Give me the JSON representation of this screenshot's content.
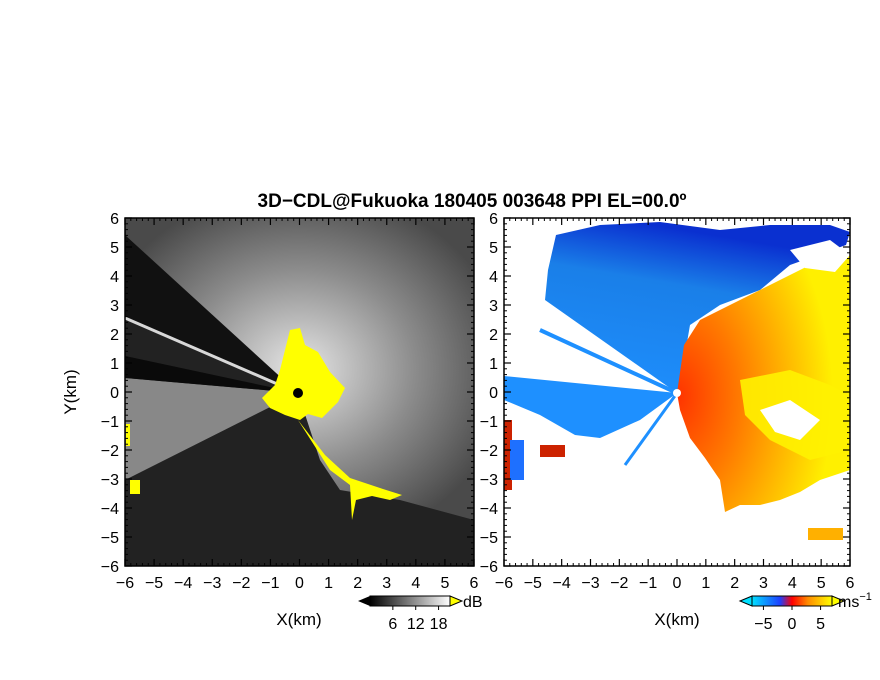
{
  "title": "3D−CDL@Fukuoka 180405 003648 PPI EL=00.0º",
  "chart_data": [
    {
      "type": "heatmap",
      "panel": "left",
      "quantity": "backscatter intensity",
      "xlabel": "X(km)",
      "ylabel": "Y(km)",
      "xlim": [
        -6,
        6
      ],
      "ylim": [
        -6,
        6
      ],
      "xticks": [
        "−6",
        "−5",
        "−4",
        "−3",
        "−2",
        "−1",
        "0",
        "1",
        "2",
        "3",
        "4",
        "5",
        "6"
      ],
      "yticks": [
        "6",
        "5",
        "4",
        "3",
        "2",
        "1",
        "0",
        "−1",
        "−2",
        "−3",
        "−4",
        "−5",
        "−6"
      ],
      "colorbar": {
        "unit": "dB",
        "ticks": [
          "6",
          "12",
          "18"
        ],
        "values": [
          6,
          12,
          18
        ],
        "range": [
          0,
          21
        ]
      },
      "colors": {
        "low": "#000000",
        "high": "#ffffff",
        "saturated": "#ffff00"
      }
    },
    {
      "type": "heatmap",
      "panel": "right",
      "quantity": "radial velocity",
      "xlabel": "X(km)",
      "xlim": [
        -6,
        6
      ],
      "ylim": [
        -6,
        6
      ],
      "xticks": [
        "−6",
        "−5",
        "−4",
        "−3",
        "−2",
        "−1",
        "0",
        "1",
        "2",
        "3",
        "4",
        "5",
        "6"
      ],
      "yticks": [
        "6",
        "5",
        "4",
        "3",
        "2",
        "1",
        "0",
        "−1",
        "−2",
        "−3",
        "−4",
        "−5",
        "−6"
      ],
      "colorbar": {
        "unit": "ms",
        "unit_exponent": "−1",
        "ticks": [
          "−5",
          "0",
          "5"
        ],
        "values": [
          -5,
          0,
          5
        ],
        "range": [
          -7,
          7
        ]
      },
      "colors": {
        "negative_far": "#0000cc",
        "negative": "#1e90ff",
        "zero": "#ff0000",
        "positive": "#ff8c00",
        "positive_far": "#ffff00"
      }
    }
  ]
}
